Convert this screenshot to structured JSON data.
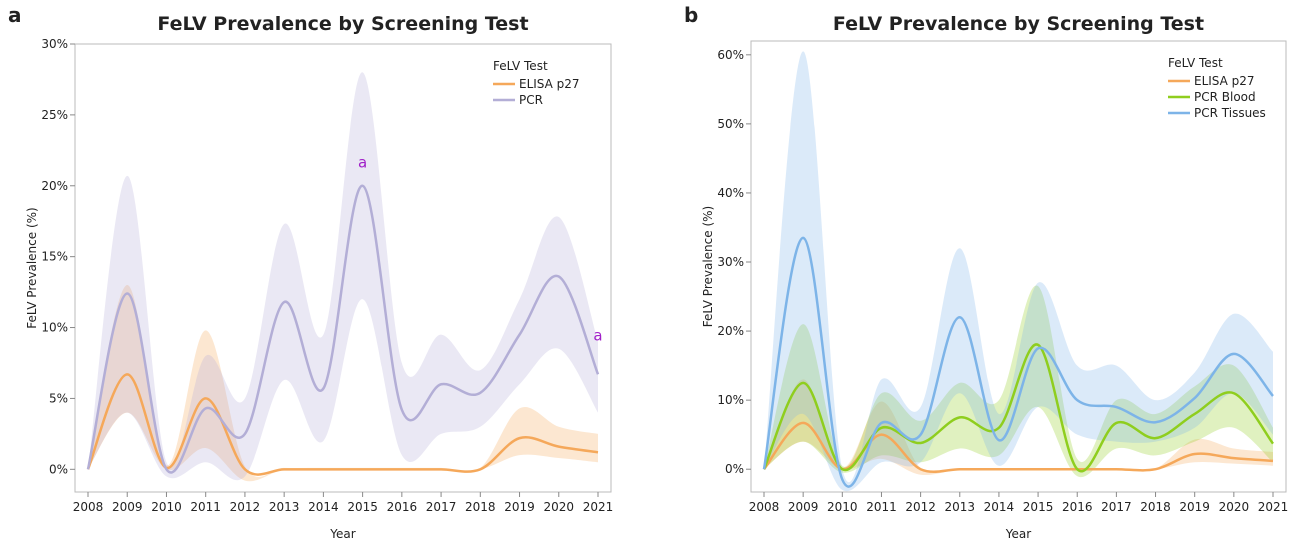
{
  "chart_data": [
    {
      "type": "line",
      "panel": "a",
      "title": "FeLV Prevalence by Screening Test",
      "x_label": "Year",
      "y_label": "FeLV Prevalence (%)",
      "legend_title": "FeLV Test",
      "legend": "top-right",
      "x": [
        2008,
        2009,
        2010,
        2011,
        2012,
        2013,
        2014,
        2015,
        2016,
        2017,
        2018,
        2019,
        2020,
        2021
      ],
      "xlim": [
        2008,
        2021
      ],
      "xticks": [
        2008,
        2009,
        2010,
        2011,
        2012,
        2013,
        2014,
        2015,
        2016,
        2017,
        2018,
        2019,
        2020,
        2021
      ],
      "ylim": [
        -1.6,
        30
      ],
      "yticks": [
        {
          "value": 0,
          "label": "0%"
        },
        {
          "value": 5,
          "label": "5%"
        },
        {
          "value": 10,
          "label": "10%"
        },
        {
          "value": 15,
          "label": "15%"
        },
        {
          "value": 20,
          "label": "20%"
        },
        {
          "value": 25,
          "label": "25%"
        },
        {
          "value": 30,
          "label": "30%"
        }
      ],
      "series": [
        {
          "name": "ELISA p27",
          "color": "#f5a85a",
          "values": [
            0,
            6.7,
            0.1,
            5,
            0,
            0,
            0,
            0,
            0,
            0,
            0,
            2.2,
            1.6,
            1.2
          ],
          "upper": [
            0,
            13,
            0.3,
            9.8,
            0.2,
            0.1,
            0.1,
            0.1,
            0.1,
            0.1,
            0.1,
            4.3,
            3,
            2.5
          ],
          "lower": [
            0,
            4,
            0,
            1.5,
            -0.8,
            0,
            0,
            0,
            0,
            0,
            0,
            1,
            0.8,
            0.5
          ]
        },
        {
          "name": "PCR",
          "color": "#b3aed6",
          "values": [
            0,
            12.4,
            0,
            4.3,
            2.5,
            11.8,
            5.7,
            20,
            4.2,
            6,
            5.4,
            9.5,
            13.6,
            6.7
          ],
          "upper": [
            0,
            20.7,
            0.5,
            8,
            5,
            17.3,
            9.5,
            28,
            7.5,
            9.5,
            7,
            12,
            17.8,
            9
          ],
          "lower": [
            0,
            4,
            -0.5,
            0.5,
            -0.5,
            6.3,
            2,
            12,
            1,
            2.5,
            3,
            6,
            8.5,
            4
          ]
        }
      ],
      "annotations": [
        {
          "text": "a",
          "x": 2015,
          "y": 21.3,
          "color": "#a020c8"
        },
        {
          "text": "a",
          "x": 2021,
          "y": 9.1,
          "color": "#a020c8"
        }
      ]
    },
    {
      "type": "line",
      "panel": "b",
      "title": "FeLV Prevalence by Screening Test",
      "x_label": "Year",
      "y_label": "FeLV Prevalence (%)",
      "legend_title": "FeLV Test",
      "legend": "top-right",
      "x": [
        2008,
        2009,
        2010,
        2011,
        2012,
        2013,
        2014,
        2015,
        2016,
        2017,
        2018,
        2019,
        2020,
        2021
      ],
      "xlim": [
        2008,
        2021
      ],
      "xticks": [
        2008,
        2009,
        2010,
        2011,
        2012,
        2013,
        2014,
        2015,
        2016,
        2017,
        2018,
        2019,
        2020,
        2021
      ],
      "ylim": [
        -3.3,
        62
      ],
      "yticks": [
        {
          "value": 0,
          "label": "0%"
        },
        {
          "value": 10,
          "label": "10%"
        },
        {
          "value": 20,
          "label": "20%"
        },
        {
          "value": 30,
          "label": "30%"
        },
        {
          "value": 40,
          "label": "40%"
        },
        {
          "value": 50,
          "label": "50%"
        },
        {
          "value": 60,
          "label": "60%"
        }
      ],
      "series": [
        {
          "name": "ELISA p27",
          "color": "#f5a85a",
          "values": [
            0,
            6.7,
            0,
            5,
            0,
            0,
            0,
            0,
            0,
            0,
            0,
            2.2,
            1.6,
            1.2
          ],
          "upper": [
            0,
            13,
            0.3,
            9.8,
            0.2,
            0.1,
            0.1,
            0.1,
            0.1,
            0.1,
            0.1,
            4.3,
            3,
            2.5
          ],
          "lower": [
            0,
            4,
            0,
            1.5,
            -0.8,
            0,
            0,
            0,
            0,
            0,
            0,
            1,
            0.8,
            0.5
          ]
        },
        {
          "name": "PCR Blood",
          "color": "#8fce1e",
          "values": [
            0,
            12.5,
            0,
            6,
            3.8,
            7.5,
            6,
            18,
            0,
            6.7,
            4.5,
            8,
            11,
            3.7
          ],
          "upper": [
            0,
            21,
            0.5,
            11,
            7,
            12.5,
            10,
            26.5,
            1.5,
            10,
            8,
            12,
            15,
            6
          ],
          "lower": [
            0,
            4,
            -0.5,
            2,
            1,
            3,
            2,
            9,
            -1,
            3,
            2,
            4,
            6,
            1
          ]
        },
        {
          "name": "PCR Tissues",
          "color": "#7db4e8",
          "values": [
            0,
            33.5,
            -1.5,
            6.7,
            5,
            22,
            4.2,
            17.5,
            10,
            9,
            6.8,
            10.3,
            16.7,
            10.6
          ],
          "upper": [
            0,
            60.5,
            0,
            13,
            9,
            32,
            8,
            27,
            15,
            15,
            10,
            14,
            22.5,
            17
          ],
          "lower": [
            0,
            8,
            -3,
            1,
            1,
            11,
            0.5,
            9,
            5,
            4,
            4,
            6,
            11,
            5
          ]
        }
      ]
    }
  ]
}
